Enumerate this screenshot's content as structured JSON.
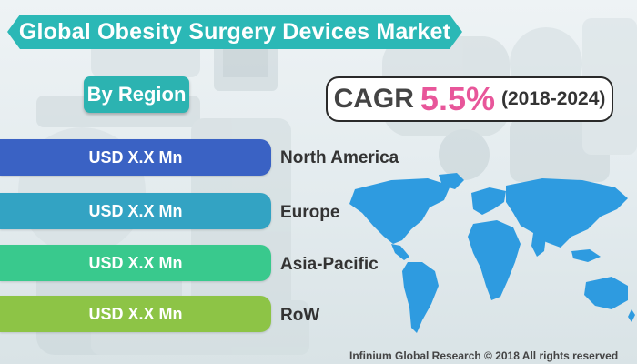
{
  "title": "Global Obesity Surgery Devices Market",
  "segment_label": "By Region",
  "cagr": {
    "label": "CAGR",
    "value": "5.5%",
    "period": "(2018-2024)"
  },
  "regions": [
    {
      "value": "USD X.X Mn",
      "name": "North America",
      "color": "#3a62c4"
    },
    {
      "value": "USD X.X Mn",
      "name": "Europe",
      "color": "#33a3c3"
    },
    {
      "value": "USD X.X Mn",
      "name": "Asia-Pacific",
      "color": "#39c98d"
    },
    {
      "value": "USD X.X Mn",
      "name": "RoW",
      "color": "#8dc446"
    }
  ],
  "footer": "Infinium Global Research © 2018 All rights reserved",
  "colors": {
    "accent": "#2bb8b6",
    "cagr_highlight": "#e8569a",
    "map": "#2e9be0"
  }
}
